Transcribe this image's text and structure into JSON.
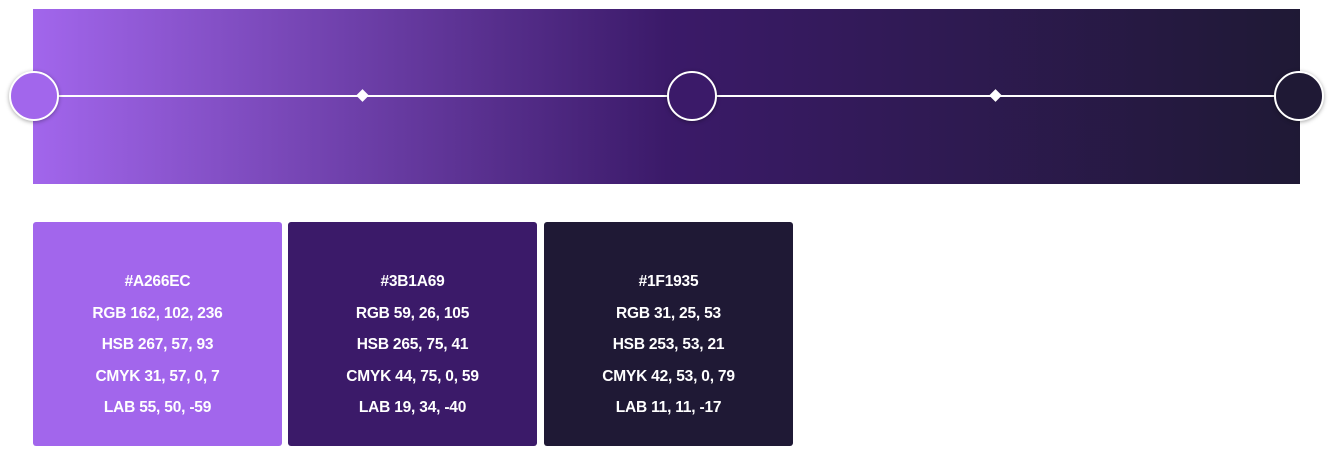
{
  "gradient": {
    "stops": [
      {
        "color": "#A266EC"
      },
      {
        "color": "#3B1A69"
      },
      {
        "color": "#1F1935"
      }
    ]
  },
  "swatches": [
    {
      "color": "#A266EC",
      "hex": "#A266EC",
      "rgb": "RGB 162, 102, 236",
      "hsb": "HSB 267, 57, 93",
      "cmyk": "CMYK 31, 57, 0, 7",
      "lab": "LAB 55, 50, -59"
    },
    {
      "color": "#3B1A69",
      "hex": "#3B1A69",
      "rgb": "RGB 59, 26, 105",
      "hsb": "HSB 265, 75, 41",
      "cmyk": "CMYK 44, 75, 0, 59",
      "lab": "LAB 19, 34, -40"
    },
    {
      "color": "#1F1935",
      "hex": "#1F1935",
      "rgb": "RGB 31, 25, 53",
      "hsb": "HSB 253, 53, 21",
      "cmyk": "CMYK 42, 53, 0, 79",
      "lab": "LAB 11, 11, -17"
    }
  ]
}
